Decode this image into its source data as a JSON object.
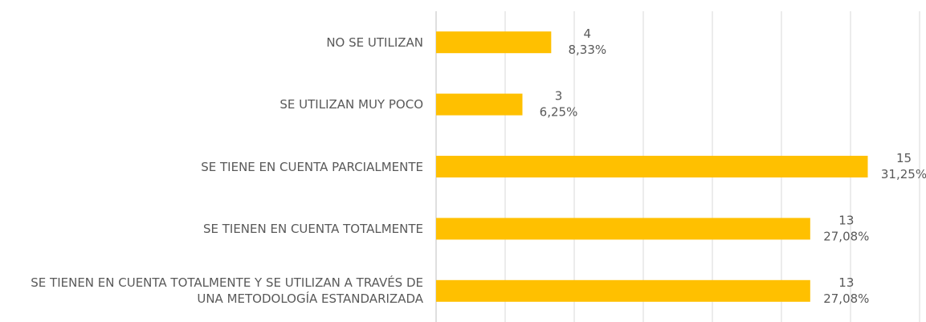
{
  "chart_data": {
    "type": "hbar",
    "categories": [
      "NO SE UTILIZAN",
      "SE UTILIZAN MUY POCO",
      "SE TIENE EN CUENTA PARCIALMENTE",
      "SE TIENEN EN CUENTA TOTALMENTE",
      "SE TIENEN EN CUENTA TOTALMENTE Y SE UTILIZAN A TRAVÉS DE UNA METODOLOGÍA ESTANDARIZADA"
    ],
    "values": [
      4,
      3,
      15,
      13,
      13
    ],
    "percentages": [
      8.33,
      6.25,
      31.25,
      27.08,
      27.08
    ],
    "percentage_labels": [
      "8,33%",
      "6,25%",
      "31,25%",
      "27,08%",
      "27,08%"
    ],
    "color": "#ffc000",
    "xlim": [
      0,
      16.8
    ],
    "xticks": [
      0,
      2.4,
      4.8,
      7.2,
      9.6,
      12,
      14.4,
      16.8
    ],
    "grid": true
  }
}
